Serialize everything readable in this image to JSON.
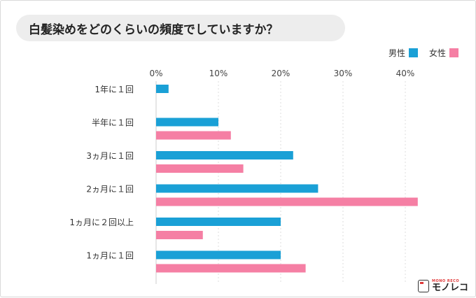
{
  "title": "白髪染めをどのくらいの頻度でしていますか？",
  "legend": {
    "male": "男性",
    "female": "女性"
  },
  "colors": {
    "male": "#1aa0d6",
    "female": "#f57fa4"
  },
  "logo": {
    "sub": "MONO RECO",
    "main": "モノレコ"
  },
  "chart_data": {
    "type": "bar",
    "orientation": "horizontal",
    "categories": [
      "1年に１回",
      "半年に１回",
      "3ヵ月に１回",
      "2ヵ月に１回",
      "1ヵ月に２回以上",
      "1ヵ月に１回"
    ],
    "series": [
      {
        "name": "男性",
        "values": [
          2,
          10,
          22,
          26,
          20,
          20
        ]
      },
      {
        "name": "女性",
        "values": [
          0,
          12,
          14,
          42,
          7.5,
          24
        ]
      }
    ],
    "xticks": [
      "0%",
      "10%",
      "20%",
      "30%",
      "40%"
    ],
    "xlim": [
      0,
      45
    ],
    "grid": true,
    "legend_position": "top-right"
  }
}
